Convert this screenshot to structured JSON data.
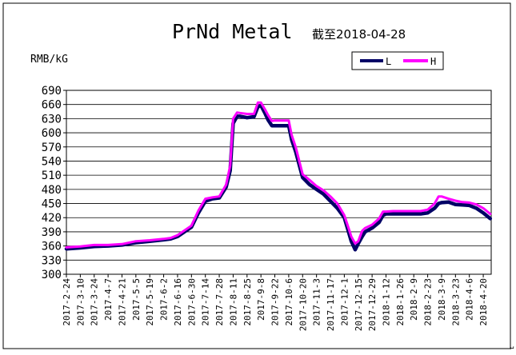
{
  "chart_data": {
    "type": "line",
    "title": "PrNd Metal",
    "subtitle": "截至2018-04-28",
    "ylabel": "RMB/kG",
    "xlabel": "",
    "ylim": [
      300,
      690
    ],
    "y_ticks": [
      300,
      330,
      360,
      390,
      420,
      450,
      480,
      510,
      540,
      570,
      600,
      630,
      660,
      690
    ],
    "grid": true,
    "legend_position": "top-right",
    "x_tick_labels": [
      "2017-2-24",
      "2017-3-10",
      "2017-3-24",
      "2017-4-7",
      "2017-4-21",
      "2017-5-5",
      "2017-5-19",
      "2017-6-2",
      "2017-6-16",
      "2017-6-30",
      "2017-7-14",
      "2017-7-28",
      "2017-8-11",
      "2017-8-25",
      "2017-9-8",
      "2017-9-22",
      "2017-10-6",
      "2017-10-20",
      "2017-11-3",
      "2017-11-17",
      "2017-12-1",
      "2017-12-15",
      "2017-12-29",
      "2018-1-12",
      "2018-1-26",
      "2018-2-9",
      "2018-2-23",
      "2018-3-9",
      "2018-3-23",
      "2018-4-6",
      "2018-4-20"
    ],
    "x": [
      "2017-2-24",
      "2017-3-10",
      "2017-3-24",
      "2017-4-7",
      "2017-4-21",
      "2017-5-5",
      "2017-5-19",
      "2017-6-2",
      "2017-6-9",
      "2017-6-16",
      "2017-6-23",
      "2017-6-30",
      "2017-7-7",
      "2017-7-14",
      "2017-7-21",
      "2017-7-28",
      "2017-8-4",
      "2017-8-8",
      "2017-8-11",
      "2017-8-15",
      "2017-8-18",
      "2017-8-25",
      "2017-9-1",
      "2017-9-5",
      "2017-9-8",
      "2017-9-12",
      "2017-9-15",
      "2017-9-19",
      "2017-9-22",
      "2017-9-29",
      "2017-10-6",
      "2017-10-9",
      "2017-10-13",
      "2017-10-20",
      "2017-10-27",
      "2017-11-3",
      "2017-11-10",
      "2017-11-17",
      "2017-11-24",
      "2017-12-1",
      "2017-12-5",
      "2017-12-8",
      "2017-12-12",
      "2017-12-15",
      "2017-12-19",
      "2017-12-22",
      "2017-12-29",
      "2018-1-5",
      "2018-1-9",
      "2018-1-12",
      "2018-1-19",
      "2018-1-26",
      "2018-2-2",
      "2018-2-9",
      "2018-2-16",
      "2018-2-23",
      "2018-3-2",
      "2018-3-6",
      "2018-3-9",
      "2018-3-16",
      "2018-3-23",
      "2018-3-30",
      "2018-4-6",
      "2018-4-13",
      "2018-4-20",
      "2018-4-27"
    ],
    "series": [
      {
        "name": "L",
        "color": "#000066",
        "values": [
          354,
          356,
          359,
          360,
          362,
          367,
          370,
          373,
          375,
          380,
          390,
          400,
          430,
          455,
          460,
          462,
          485,
          520,
          620,
          635,
          635,
          632,
          634,
          655,
          658,
          642,
          628,
          615,
          615,
          615,
          615,
          585,
          560,
          505,
          490,
          480,
          470,
          455,
          440,
          420,
          392,
          370,
          352,
          365,
          380,
          390,
          398,
          410,
          425,
          428,
          428,
          428,
          428,
          428,
          428,
          430,
          440,
          450,
          452,
          453,
          448,
          447,
          446,
          440,
          430,
          418
        ]
      },
      {
        "name": "H",
        "color": "#ff00ff",
        "values": [
          357,
          359,
          362,
          362,
          364,
          370,
          372,
          375,
          377,
          383,
          393,
          403,
          435,
          460,
          463,
          465,
          490,
          530,
          630,
          643,
          642,
          640,
          640,
          664,
          664,
          650,
          638,
          625,
          626,
          626,
          626,
          595,
          570,
          512,
          500,
          487,
          478,
          465,
          450,
          425,
          400,
          380,
          365,
          370,
          392,
          398,
          405,
          418,
          433,
          433,
          434,
          434,
          434,
          434,
          434,
          437,
          450,
          465,
          465,
          460,
          456,
          453,
          452,
          448,
          440,
          428
        ]
      }
    ]
  }
}
